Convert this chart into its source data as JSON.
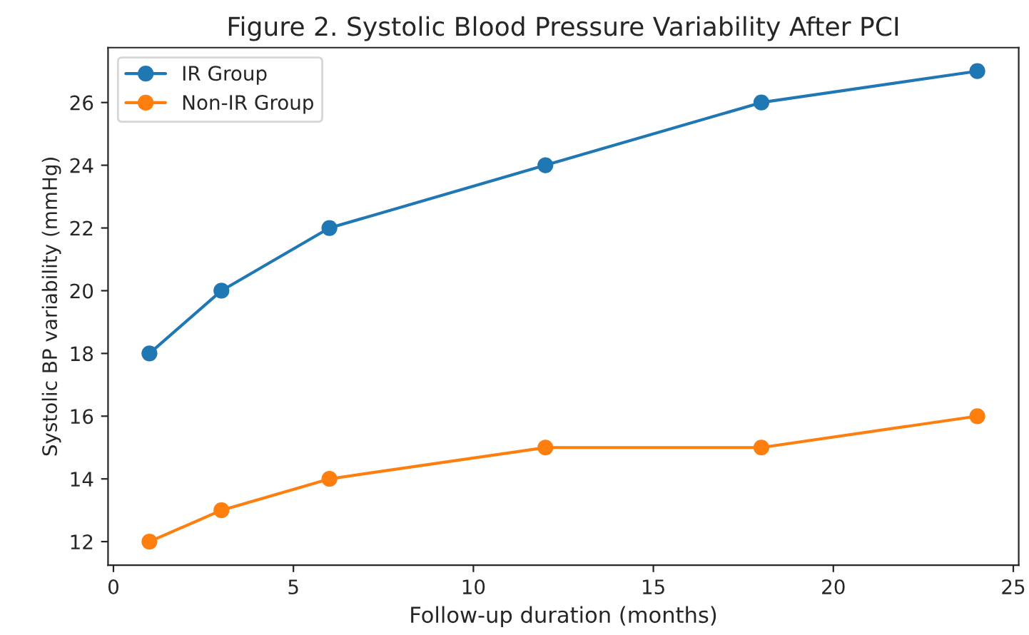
{
  "chart_data": {
    "type": "line",
    "title": "Figure 2. Systolic Blood Pressure Variability After PCI",
    "xlabel": "Follow-up duration (months)",
    "ylabel": "Systolic BP variability (mmHg)",
    "x": [
      1,
      3,
      6,
      12,
      18,
      24
    ],
    "series": [
      {
        "name": "IR Group",
        "color": "#1f77b4",
        "values": [
          18,
          20,
          22,
          24,
          26,
          27
        ]
      },
      {
        "name": "Non-IR Group",
        "color": "#ff7f0e",
        "values": [
          12,
          13,
          14,
          15,
          15,
          16
        ]
      }
    ],
    "xlim": [
      -0.15,
      25.15
    ],
    "ylim": [
      11.25,
      27.75
    ],
    "xticks": [
      0,
      5,
      10,
      15,
      20,
      25
    ],
    "yticks": [
      12,
      14,
      16,
      18,
      20,
      22,
      24,
      26
    ],
    "grid": false,
    "legend": "upper left",
    "marker": "circle",
    "line_style": "solid"
  }
}
